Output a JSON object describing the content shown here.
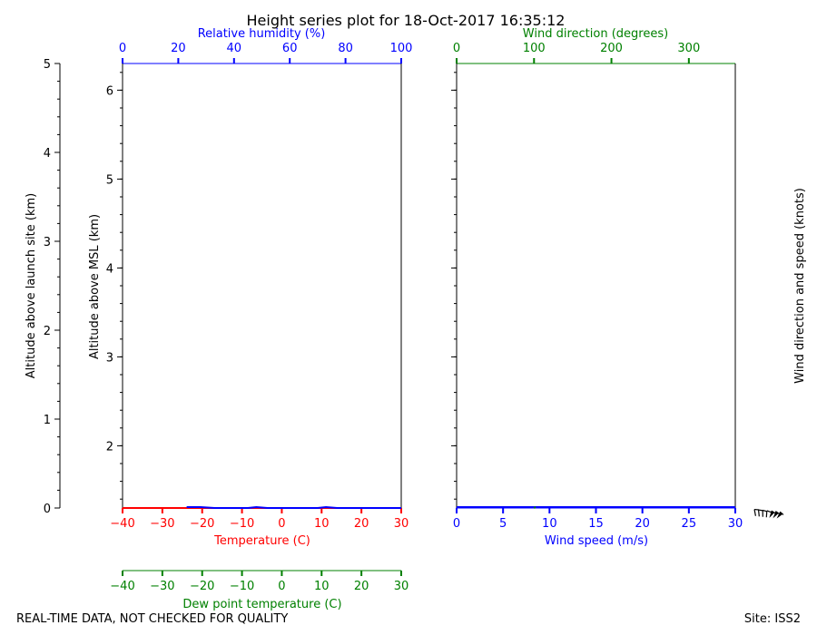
{
  "chart_data": {
    "type": "line",
    "title": "Height series plot for 18-Oct-2017 16:35:12",
    "footer_left": "REAL-TIME DATA, NOT CHECKED FOR QUALITY",
    "footer_right": "Site: ISS2",
    "colors": {
      "temperature": "#ff0000",
      "humidity": "#0000ff",
      "dewpoint": "#008000",
      "wind_speed": "#0000ff",
      "wind_direction": "#008000",
      "axis": "#000000"
    },
    "left_panel": {
      "outer_axis": {
        "label": "Altitude above launch site (km)",
        "lim": [
          0,
          5
        ],
        "ticks": [
          "0",
          "1",
          "2",
          "3",
          "4",
          "5"
        ]
      },
      "inner_axis": {
        "label": "Altitude above MSL (km)",
        "lim": [
          1.3,
          6.3
        ],
        "ticks": [
          "2",
          "3",
          "4",
          "5",
          "6"
        ],
        "tick_values": [
          2,
          3,
          4,
          5,
          6
        ]
      },
      "bottom_axis": {
        "label": "Temperature (C)",
        "lim": [
          -40,
          30
        ],
        "ticks": [
          "−40",
          "−30",
          "−20",
          "−10",
          "0",
          "10",
          "20",
          "30"
        ],
        "tick_values": [
          -40,
          -30,
          -20,
          -10,
          0,
          10,
          20,
          30
        ]
      },
      "top_axis": {
        "label": "Relative humidity (%)",
        "lim": [
          0,
          100
        ],
        "ticks": [
          "0",
          "20",
          "40",
          "60",
          "80",
          "100"
        ],
        "tick_values": [
          0,
          20,
          40,
          60,
          80,
          100
        ]
      },
      "extra_bottom_axis": {
        "label": "Dew point temperature (C)",
        "lim": [
          -40,
          30
        ],
        "ticks": [
          "−40",
          "−30",
          "−20",
          "−10",
          "0",
          "10",
          "20",
          "30"
        ],
        "tick_values": [
          -40,
          -30,
          -20,
          -10,
          0,
          10,
          20,
          30
        ]
      },
      "series": [
        {
          "key": "temperature",
          "axis": "bottom",
          "points": [
            [
              -40,
              0.0
            ],
            [
              -30,
              0.0
            ],
            [
              -20,
              0.0
            ],
            [
              -10,
              0.0
            ],
            [
              0,
              0.0
            ],
            [
              10,
              0.0
            ],
            [
              20,
              0.0
            ],
            [
              30,
              0.0
            ]
          ]
        },
        {
          "key": "humidity",
          "axis": "top",
          "points": [
            [
              23,
              0.01
            ],
            [
              28,
              0.01
            ],
            [
              33,
              0.0
            ],
            [
              45,
              0.0
            ],
            [
              48,
              0.01
            ],
            [
              52,
              0.0
            ],
            [
              70,
              0.0
            ],
            [
              73,
              0.01
            ],
            [
              77,
              0.0
            ],
            [
              100,
              0.0
            ]
          ]
        }
      ]
    },
    "right_panel": {
      "bottom_axis": {
        "label": "Wind speed (m/s)",
        "lim": [
          0,
          30
        ],
        "ticks": [
          "0",
          "5",
          "10",
          "15",
          "20",
          "25",
          "30"
        ],
        "tick_values": [
          0,
          5,
          10,
          15,
          20,
          25,
          30
        ]
      },
      "top_axis": {
        "label": "Wind direction (degrees)",
        "lim": [
          0,
          360
        ],
        "ticks": [
          "0",
          "100",
          "200",
          "300"
        ],
        "tick_values": [
          0,
          100,
          200,
          300
        ]
      },
      "right_label": "Wind direction and speed (knots)",
      "series": [
        {
          "key": "wind_speed",
          "axis": "bottom",
          "points": [
            [
              0,
              0.01
            ],
            [
              10,
              0.01
            ],
            [
              20,
              0.01
            ],
            [
              30,
              0.01
            ]
          ]
        },
        {
          "key": "wind_direction",
          "axis": "top",
          "points": [
            [
              100,
              0.0
            ],
            [
              102,
              0.01
            ]
          ]
        }
      ]
    },
    "wind_barbs": [
      {
        "direction_deg": 275,
        "speed_kt": 10
      },
      {
        "direction_deg": 280,
        "speed_kt": 10
      },
      {
        "direction_deg": 285,
        "speed_kt": 10
      },
      {
        "direction_deg": 290,
        "speed_kt": 10
      },
      {
        "direction_deg": 300,
        "speed_kt": 50
      },
      {
        "direction_deg": 305,
        "speed_kt": 50
      },
      {
        "direction_deg": 310,
        "speed_kt": 50
      }
    ]
  }
}
